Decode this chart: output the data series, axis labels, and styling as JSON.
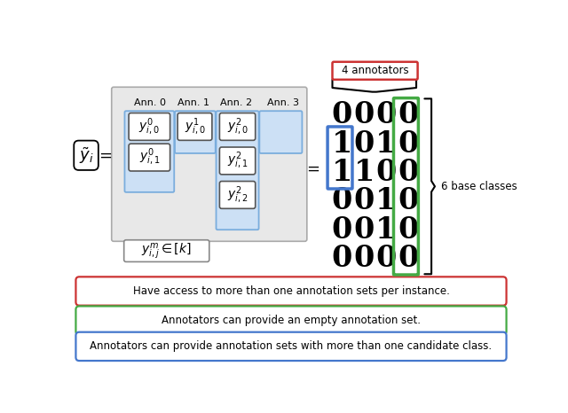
{
  "annotator_labels": [
    "Ann. 0",
    "Ann. 1",
    "Ann. 2",
    "Ann. 3"
  ],
  "matrix": [
    [
      0,
      0,
      0,
      0
    ],
    [
      1,
      0,
      1,
      0
    ],
    [
      1,
      1,
      0,
      0
    ],
    [
      0,
      0,
      1,
      0
    ],
    [
      0,
      0,
      1,
      0
    ],
    [
      0,
      0,
      0,
      0
    ]
  ],
  "n_annotators_label": "4 annotators",
  "n_classes_label": "6 base classes",
  "box1_text": "Have access to more than one annotation sets per instance.",
  "box1_color": "#cc3333",
  "box2_text": "Annotators can provide an empty annotation set.",
  "box2_color": "#44aa44",
  "box3_text": "Annotators can provide annotation sets with more than one candidate class.",
  "box3_color": "#4477cc",
  "bg_color": "#ffffff",
  "ann_col_highlight_color": "#44aa44",
  "blue_highlight_color": "#4477cc",
  "red_label_color": "#cc3333",
  "ann_bg_color": "#cce0f5",
  "ann_border_color": "#7aaddd",
  "main_box_bg": "#e8e8e8",
  "main_box_border": "#aaaaaa",
  "ybox_border": "#555555"
}
